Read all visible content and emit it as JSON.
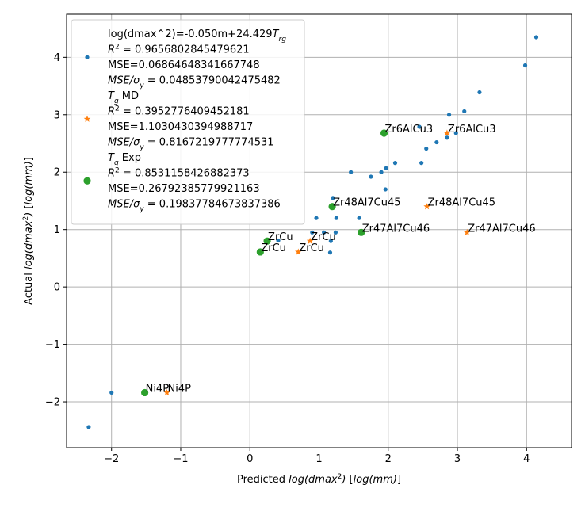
{
  "chart_data": {
    "type": "scatter",
    "xlabel": "Predicted log(dmax²) [log(mm)]",
    "ylabel": "Actual log(dmax²) [log(mm)]",
    "xlim": [
      -2.65,
      4.65
    ],
    "ylim": [
      -2.8,
      4.75
    ],
    "xticks": [
      -2,
      -1,
      0,
      1,
      2,
      3,
      4
    ],
    "yticks": [
      -2,
      -1,
      0,
      1,
      2,
      3,
      4
    ],
    "grid": true,
    "legend_position": "upper-left",
    "series": [
      {
        "name": "log(dmax^2)=-0.050m+24.429T_rg",
        "stats": [
          "R² = 0.9656802845479621",
          "MSE=0.06864648341667748",
          "MSE/σy = 0.04853790042475482"
        ],
        "marker": "circle-small",
        "color": "#1f77b4",
        "x": [
          -2.33,
          -2.0,
          0.41,
          0.9,
          0.96,
          1.07,
          1.17,
          1.2,
          1.24,
          1.25,
          1.16,
          1.46,
          1.58,
          1.75,
          1.9,
          1.96,
          1.97,
          2.1,
          2.45,
          2.48,
          2.55,
          2.7,
          2.85,
          2.88,
          2.98,
          3.1,
          3.32,
          3.98,
          4.14
        ],
        "y": [
          -2.44,
          -1.84,
          0.81,
          0.95,
          1.2,
          0.95,
          0.8,
          1.55,
          0.95,
          1.2,
          0.6,
          2.0,
          1.2,
          1.92,
          2.0,
          1.7,
          2.07,
          2.16,
          2.79,
          2.16,
          2.41,
          2.52,
          2.6,
          3.0,
          2.68,
          3.06,
          3.39,
          3.86,
          4.35
        ]
      },
      {
        "name": "T_g MD",
        "stats": [
          "R² = 0.3952776409452181",
          "MSE=1.1030430394988717",
          "MSE/σy = 0.8167219777774531"
        ],
        "marker": "star",
        "color": "#ff7f0e",
        "x": [
          -1.2,
          0.7,
          0.87,
          2.56,
          2.85,
          3.14
        ],
        "y": [
          -1.84,
          0.61,
          0.8,
          1.4,
          2.68,
          0.95
        ]
      },
      {
        "name": "T_g Exp",
        "stats": [
          "R² = 0.8531158426882373",
          "MSE=0.26792385779921163",
          "MSE/σy = 0.19837784673837386"
        ],
        "marker": "circle-large",
        "color": "#2ca02c",
        "x": [
          -1.52,
          0.15,
          0.25,
          1.19,
          1.61,
          1.94
        ],
        "y": [
          -1.84,
          0.61,
          0.8,
          1.4,
          0.95,
          2.68
        ]
      }
    ],
    "annotations": [
      {
        "text": "Ni4P",
        "x": -1.52,
        "y": -1.84
      },
      {
        "text": "Ni4P",
        "x": -1.2,
        "y": -1.84
      },
      {
        "text": "ZrCu",
        "x": 0.15,
        "y": 0.61
      },
      {
        "text": "ZrCu",
        "x": 0.25,
        "y": 0.8
      },
      {
        "text": "ZrCu",
        "x": 0.7,
        "y": 0.61
      },
      {
        "text": "ZrCu",
        "x": 0.87,
        "y": 0.8
      },
      {
        "text": "Zr48Al7Cu45",
        "x": 1.19,
        "y": 1.4
      },
      {
        "text": "Zr48Al7Cu45",
        "x": 2.56,
        "y": 1.4
      },
      {
        "text": "Zr47Al7Cu46",
        "x": 1.61,
        "y": 0.95
      },
      {
        "text": "Zr47Al7Cu46",
        "x": 3.14,
        "y": 0.95
      },
      {
        "text": "Zr6AlCu3",
        "x": 1.94,
        "y": 2.68
      },
      {
        "text": "Zr6AlCu3",
        "x": 2.85,
        "y": 2.68
      }
    ]
  }
}
